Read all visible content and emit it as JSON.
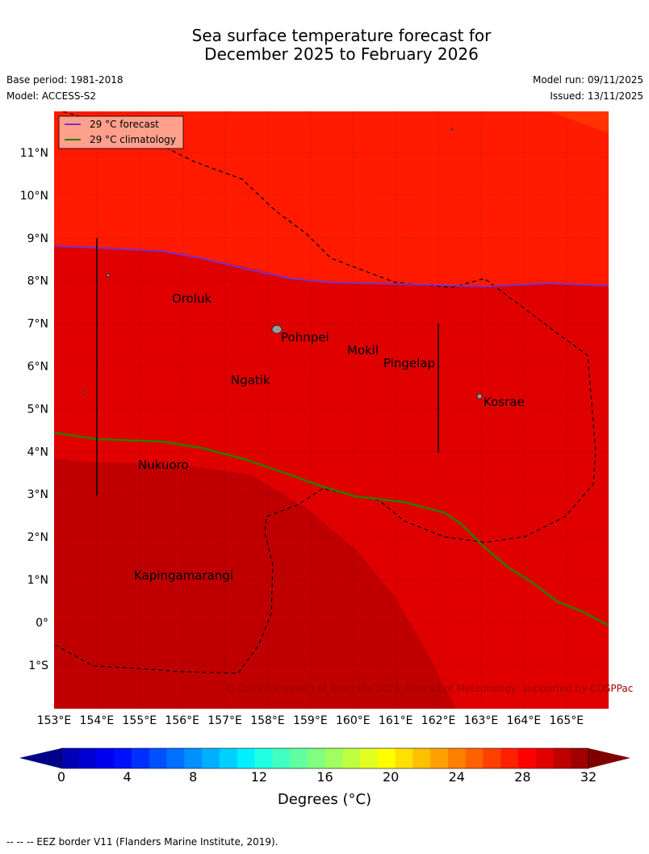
{
  "title_line1": "Sea surface temperature forecast for",
  "title_line2": "December 2025 to February 2026",
  "base_period": "Base period: 1981-2018",
  "model": "Model: ACCESS-S2",
  "model_run": "Model run: 09/11/2025",
  "issued": "Issued: 13/11/2025",
  "legend": {
    "forecast": "29 °C  forecast",
    "climatology": "29 °C  climatology",
    "forecast_color": "#7b2fc9",
    "climatology_color": "#2f7a00"
  },
  "lat_labels": [
    "11°N",
    "10°N",
    "9°N",
    "8°N",
    "7°N",
    "6°N",
    "5°N",
    "4°N",
    "3°N",
    "2°N",
    "1°N",
    "0°",
    "1°S"
  ],
  "lon_labels": [
    "153°E",
    "154°E",
    "155°E",
    "156°E",
    "157°E",
    "158°E",
    "159°E",
    "160°E",
    "161°E",
    "162°E",
    "163°E",
    "164°E",
    "165°E"
  ],
  "places": {
    "oroluk": "Oroluk",
    "pohnpei": "Pohnpei",
    "mokil": "Mokil",
    "pingelap": "Pingelap",
    "ngatik": "Ngatik",
    "kosrae": "Kosrae",
    "nukuoro": "Nukuoro",
    "kapingamarangi": "Kapingamarangi"
  },
  "copyright": "© Commonwealth of Australia 2025, Bureau of Meteorology, supported by COSPPac",
  "colorbar": {
    "tick_labels": [
      "0",
      "4",
      "8",
      "12",
      "16",
      "20",
      "24",
      "28",
      "32"
    ],
    "title": "Degrees (°C)",
    "colors": [
      "#0000b4",
      "#0000d2",
      "#0000f0",
      "#0010ff",
      "#0030ff",
      "#0050ff",
      "#0070ff",
      "#0090ff",
      "#00b0ff",
      "#00d0ff",
      "#00f0ff",
      "#20ffe0",
      "#40ffc0",
      "#60ffa0",
      "#80ff80",
      "#a0ff60",
      "#c0ff40",
      "#e0ff20",
      "#ffff00",
      "#ffe000",
      "#ffc000",
      "#ffa000",
      "#ff8000",
      "#ff6000",
      "#ff4000",
      "#ff2000",
      "#ff0000",
      "#e00000",
      "#c00000",
      "#a00000"
    ],
    "under_color": "#00008b",
    "over_color": "#800000"
  },
  "sst_colors": {
    "c30": "#ff1a00",
    "c29": "#e00000",
    "c28": "#c00000"
  },
  "footer": "--  --  -- EEZ border V11 (Flanders Marine Institute, 2019)."
}
